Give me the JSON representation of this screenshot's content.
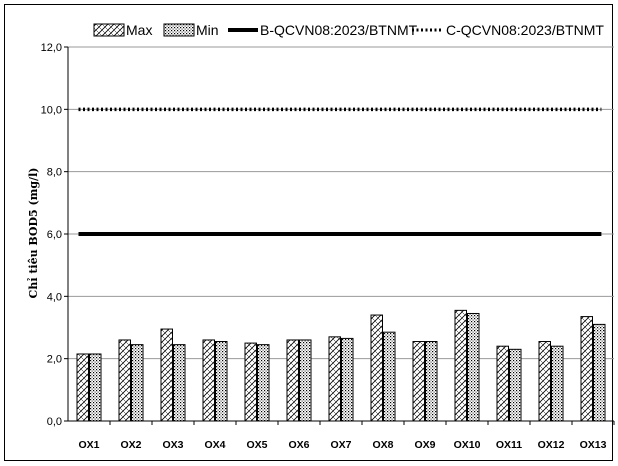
{
  "chart_data": {
    "type": "bar",
    "title": "",
    "xlabel": "",
    "ylabel": "Chỉ tiêu BOD5 (mg/l)",
    "ylim": [
      0,
      12
    ],
    "yticks": [
      "0,0",
      "2,0",
      "4,0",
      "6,0",
      "8,0",
      "10,0",
      "12,0"
    ],
    "grid": true,
    "legend_position": "top",
    "categories": [
      "OX1",
      "OX2",
      "OX3",
      "OX4",
      "OX5",
      "OX6",
      "OX7",
      "OX8",
      "OX9",
      "OX10",
      "OX11",
      "OX12",
      "OX13"
    ],
    "series": [
      {
        "name": "Max",
        "pattern": "diagonal-hatch",
        "values": [
          2.15,
          2.6,
          2.95,
          2.6,
          2.5,
          2.6,
          2.7,
          3.4,
          2.55,
          3.55,
          2.4,
          2.55,
          3.35
        ]
      },
      {
        "name": "Min",
        "pattern": "dotted-fill",
        "values": [
          2.15,
          2.45,
          2.45,
          2.55,
          2.45,
          2.6,
          2.65,
          2.85,
          2.55,
          3.45,
          2.3,
          2.4,
          3.1
        ]
      }
    ],
    "reference_lines": [
      {
        "name": "B-QCVN08:2023/BTNMT",
        "value": 6.0,
        "style": "solid-thick"
      },
      {
        "name": "C-QCVN08:2023/BTNMT",
        "value": 10.0,
        "style": "dotted"
      }
    ],
    "colors": {
      "line": "#000000",
      "bar_edge": "#000000",
      "grid": "#999999"
    }
  }
}
